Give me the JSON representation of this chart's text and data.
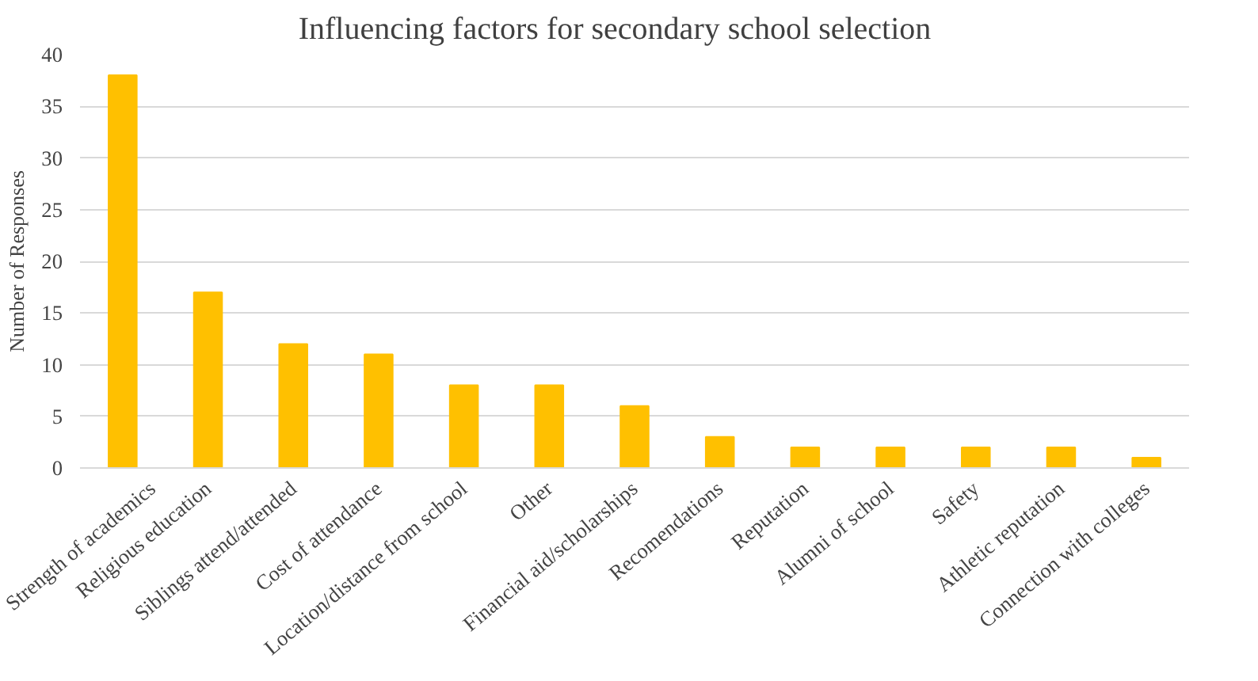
{
  "chart_data": {
    "type": "bar",
    "title": "Influencing  factors  for  secondary  school  selection",
    "ylabel": "Number of Responses",
    "categories": [
      "Strength of academics",
      "Religious education",
      "Siblings attend/attended",
      "Cost of attendance",
      "Location/distance from school",
      "Other",
      "Financial aid/scholarships",
      "Recomendations",
      "Reputation",
      "Alumni of school",
      "Safety",
      "Athletic reputation",
      "Connection with colleges"
    ],
    "values": [
      38,
      17,
      12,
      11,
      8,
      8,
      6,
      3,
      2,
      2,
      2,
      2,
      1
    ],
    "color": "#ffc000",
    "ylim": [
      0,
      40
    ],
    "yticks": [
      0,
      5,
      10,
      15,
      20,
      25,
      30,
      35,
      40
    ],
    "grid": "y"
  }
}
